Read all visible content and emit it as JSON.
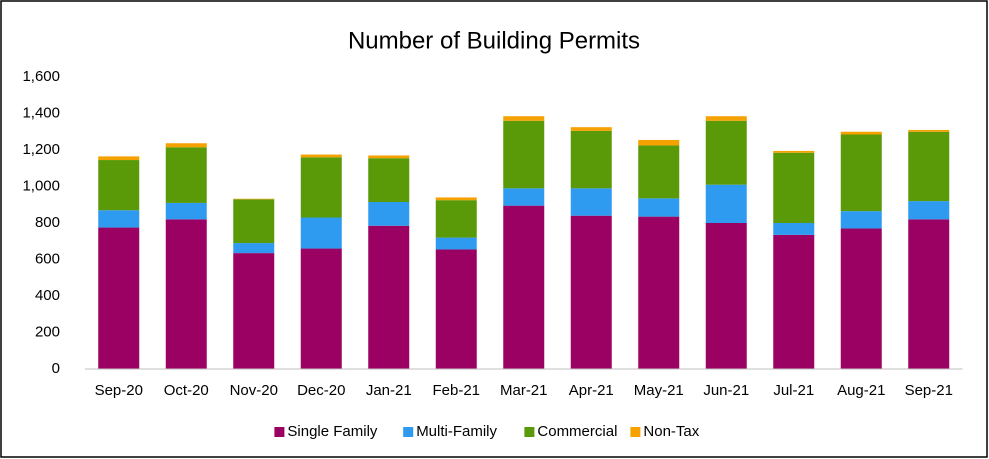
{
  "chart_data": {
    "type": "stacked_bar",
    "title": "Number of Building Permits",
    "categories": [
      "Sep-20",
      "Oct-20",
      "Nov-20",
      "Dec-20",
      "Jan-21",
      "Feb-21",
      "Mar-21",
      "Apr-21",
      "May-21",
      "Jun-21",
      "Jul-21",
      "Aug-21",
      "Sep-21"
    ],
    "series": [
      {
        "name": "Single Family",
        "color": "#9b0063",
        "values": [
          775,
          820,
          635,
          660,
          785,
          655,
          895,
          840,
          835,
          800,
          735,
          770,
          820
        ]
      },
      {
        "name": "Multi-Family",
        "color": "#2e9bf0",
        "values": [
          95,
          90,
          55,
          170,
          130,
          65,
          95,
          150,
          100,
          210,
          65,
          95,
          100
        ]
      },
      {
        "name": "Commercial",
        "color": "#5a9a08",
        "values": [
          275,
          305,
          240,
          330,
          240,
          205,
          370,
          315,
          290,
          350,
          385,
          420,
          380
        ]
      },
      {
        "name": "Non-Tax",
        "color": "#f5a100",
        "values": [
          20,
          22,
          3,
          15,
          15,
          15,
          25,
          20,
          30,
          25,
          10,
          15,
          10
        ]
      }
    ],
    "ylim": [
      0,
      1600
    ],
    "yticks": [
      0,
      200,
      400,
      600,
      800,
      {
        "value": 1000,
        "label": "1,000"
      },
      {
        "value": 1200,
        "label": "1,200"
      },
      {
        "value": 1400,
        "label": "1,400"
      },
      {
        "value": 1600,
        "label": "1,600"
      }
    ],
    "grid": false,
    "legend": "bottom"
  }
}
